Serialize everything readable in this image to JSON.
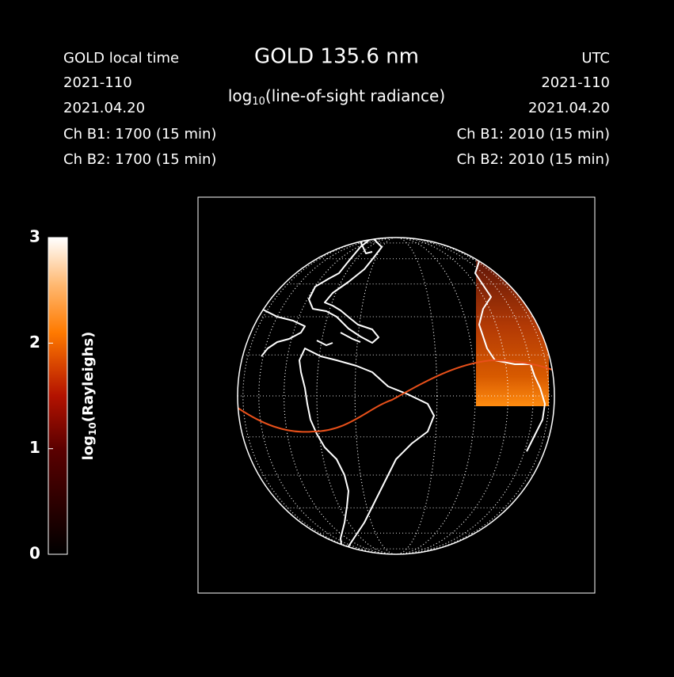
{
  "chart_data": {
    "type": "map",
    "title": "GOLD 135.6 nm",
    "subtitle": {
      "base": "log",
      "subscript": "10",
      "text": "(line-of-sight radiance)"
    },
    "left_info": [
      "GOLD local time",
      "2021-110",
      "2021.04.20",
      "Ch B1: 1700 (15 min)",
      "Ch B2: 1700 (15 min)"
    ],
    "right_info": [
      "UTC",
      "2021-110",
      "2021.04.20",
      "Ch B1: 2010 (15 min)",
      "Ch B2: 2010 (15 min)"
    ],
    "colorbar": {
      "label": {
        "base": "log",
        "subscript": "10",
        "text": "(Rayleighs)"
      },
      "lim": [
        0,
        3
      ],
      "ticks": [
        0,
        1,
        2,
        3
      ]
    }
  }
}
